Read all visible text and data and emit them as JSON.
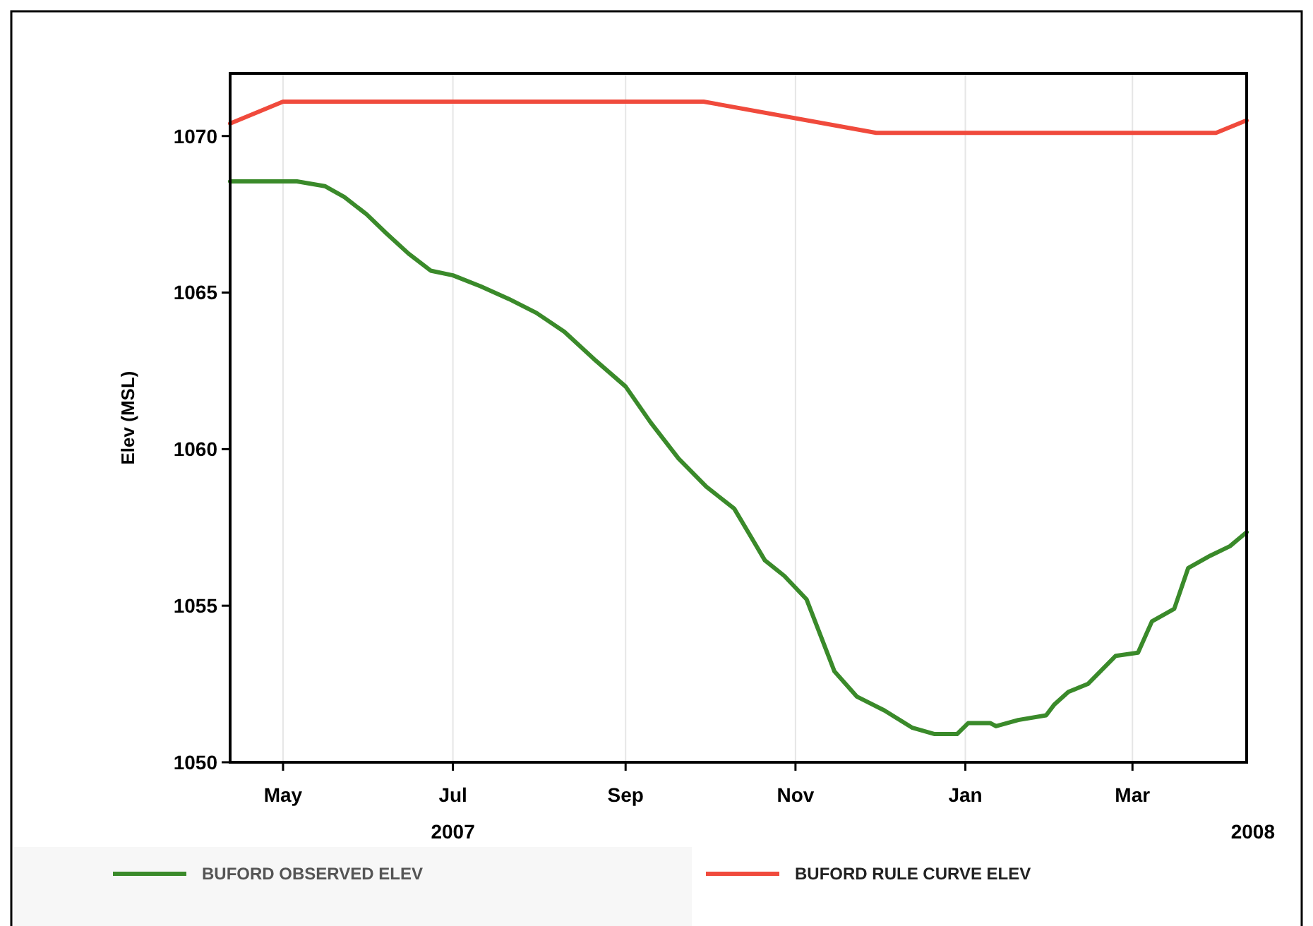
{
  "chart_data": {
    "type": "line",
    "ylabel": "Elev (MSL)",
    "xlim": [
      "2007-04-12",
      "2008-04-11"
    ],
    "ylim": [
      1050,
      1072
    ],
    "yticks": [
      1050,
      1055,
      1060,
      1065,
      1070
    ],
    "xticks": [
      {
        "value": "2007-05-01",
        "label": "May"
      },
      {
        "value": "2007-07-01",
        "label": "Jul"
      },
      {
        "value": "2007-09-01",
        "label": "Sep"
      },
      {
        "value": "2007-11-01",
        "label": "Nov"
      },
      {
        "value": "2008-01-01",
        "label": "Jan"
      },
      {
        "value": "2008-03-01",
        "label": "Mar"
      }
    ],
    "grid": "x",
    "legend": "bottom",
    "annotations": [
      "2007",
      "2008"
    ],
    "series": [
      {
        "name": "BUFORD OBSERVED ELEV",
        "color": "#3a8a2a",
        "x": [
          "2007-04-12",
          "2007-05-01",
          "2007-05-06",
          "2007-05-16",
          "2007-05-23",
          "2007-05-31",
          "2007-06-07",
          "2007-06-15",
          "2007-06-23",
          "2007-07-01",
          "2007-07-11",
          "2007-07-21",
          "2007-07-31",
          "2007-08-10",
          "2007-08-21",
          "2007-09-01",
          "2007-09-10",
          "2007-09-20",
          "2007-09-30",
          "2007-10-10",
          "2007-10-16",
          "2007-10-21",
          "2007-10-28",
          "2007-11-05",
          "2007-11-10",
          "2007-11-15",
          "2007-11-23",
          "2007-12-03",
          "2007-12-13",
          "2007-12-21",
          "2007-12-29",
          "2008-01-02",
          "2008-01-10",
          "2008-01-12",
          "2008-01-20",
          "2008-01-30",
          "2008-02-02",
          "2008-02-07",
          "2008-02-14",
          "2008-02-19",
          "2008-02-24",
          "2008-03-03",
          "2008-03-08",
          "2008-03-16",
          "2008-03-21",
          "2008-03-29",
          "2008-04-05",
          "2008-04-11"
        ],
        "values": [
          1068.55,
          1068.55,
          1068.55,
          1068.4,
          1068.05,
          1067.5,
          1066.9,
          1066.25,
          1065.7,
          1065.55,
          1065.2,
          1064.8,
          1064.35,
          1063.75,
          1062.85,
          1062.0,
          1060.85,
          1059.7,
          1058.8,
          1058.1,
          1057.2,
          1056.45,
          1055.95,
          1055.2,
          1054.05,
          1052.9,
          1052.1,
          1051.65,
          1051.1,
          1050.9,
          1050.9,
          1051.25,
          1051.25,
          1051.15,
          1051.35,
          1051.5,
          1051.85,
          1052.25,
          1052.5,
          1052.95,
          1053.4,
          1053.5,
          1054.5,
          1054.9,
          1056.2,
          1056.6,
          1056.9,
          1057.35
        ]
      },
      {
        "name": "BUFORD RULE CURVE ELEV",
        "color": "#f04a3c",
        "x": [
          "2007-04-12",
          "2007-05-01",
          "2007-09-29",
          "2007-11-30",
          "2008-03-31",
          "2008-04-11"
        ],
        "values": [
          1070.4,
          1071.1,
          1071.1,
          1070.1,
          1070.1,
          1070.5
        ]
      }
    ]
  }
}
